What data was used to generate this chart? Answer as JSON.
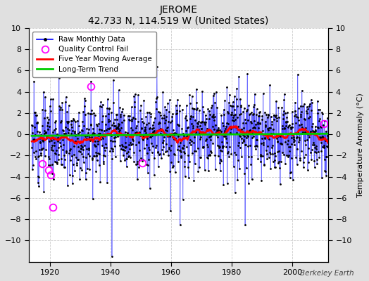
{
  "title": "JEROME",
  "subtitle": "42.733 N, 114.519 W (United States)",
  "ylabel": "Temperature Anomaly (°C)",
  "attribution": "Berkeley Earth",
  "xlim": [
    1913,
    2012
  ],
  "ylim": [
    -12,
    10
  ],
  "yticks": [
    -10,
    -8,
    -6,
    -4,
    -2,
    0,
    2,
    4,
    6,
    8,
    10
  ],
  "xticks": [
    1920,
    1940,
    1960,
    1980,
    2000
  ],
  "plot_bg": "#ffffff",
  "fig_bg": "#e0e0e0",
  "grid_color": "#c0c0c0",
  "seed": 12,
  "start_year": 1914,
  "end_year": 2011,
  "raw_std": 2.2,
  "qc_fail_x": [
    1917.5,
    1919.5,
    1920.2,
    1921.0,
    1933.5,
    1950.5,
    2010.5
  ],
  "qc_fail_y": [
    -2.8,
    -3.4,
    -3.8,
    -6.9,
    4.5,
    -2.7,
    1.0
  ],
  "trend_y0": -0.15,
  "trend_y1": 0.05
}
